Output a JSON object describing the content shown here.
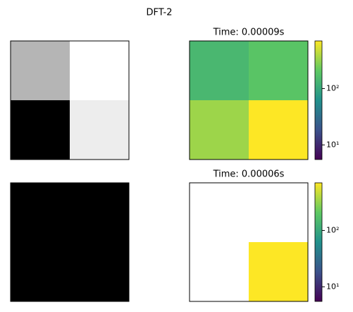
{
  "title": "DFT-2",
  "chart_data": [
    {
      "type": "heatmap",
      "cmap": "gray",
      "clim": [
        0,
        1
      ],
      "log": false,
      "values": [
        [
          0.71,
          1.0
        ],
        [
          0.0,
          0.93
        ]
      ]
    },
    {
      "type": "heatmap",
      "title": "Time: 0.00009s",
      "cmap": "viridis",
      "clim": [
        5.5,
        700
      ],
      "log": true,
      "values": [
        [
          141,
          189
        ],
        [
          338,
          700
        ]
      ],
      "cticks": [
        {
          "value": 10,
          "label": "10¹"
        },
        {
          "value": 100,
          "label": "10²"
        }
      ]
    },
    {
      "type": "heatmap",
      "cmap": "gray",
      "clim": [
        0,
        1
      ],
      "log": false,
      "values": [
        [
          0.0,
          0.0
        ],
        [
          0.0,
          0.0
        ]
      ]
    },
    {
      "type": "heatmap",
      "title": "Time: 0.00006s",
      "cmap": "viridis",
      "clim": [
        5.5,
        700
      ],
      "log": true,
      "values": [
        [
          null,
          null
        ],
        [
          null,
          700
        ]
      ],
      "cticks": [
        {
          "value": 10,
          "label": "10¹"
        },
        {
          "value": 100,
          "label": "10²"
        }
      ]
    }
  ]
}
